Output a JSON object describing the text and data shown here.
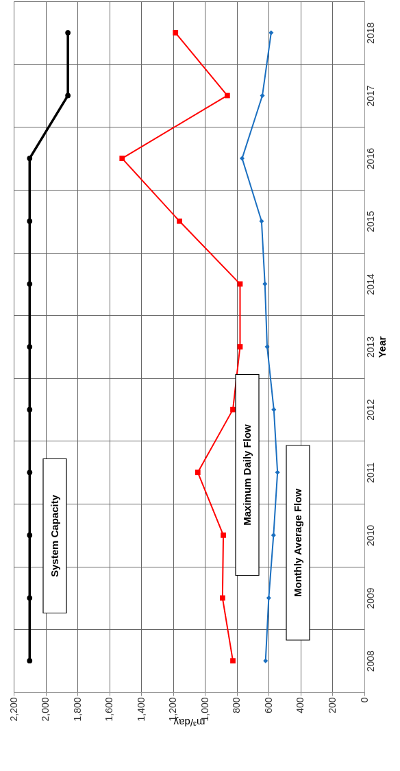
{
  "chart_data": {
    "type": "line",
    "orientation": "horizontal",
    "xlabel": "m³/day",
    "ylabel": "Year",
    "categories": [
      "2018",
      "2017",
      "2016",
      "2015",
      "2014",
      "2013",
      "2012",
      "2011",
      "2010",
      "2009",
      "2008"
    ],
    "xlim": [
      2200,
      0
    ],
    "xticks": [
      {
        "value": 2200,
        "label": "2,200"
      },
      {
        "value": 2000,
        "label": "2,000"
      },
      {
        "value": 1800,
        "label": "1,800"
      },
      {
        "value": 1600,
        "label": "1,600"
      },
      {
        "value": 1400,
        "label": "1,400"
      },
      {
        "value": 1200,
        "label": "1,200"
      },
      {
        "value": 1000,
        "label": "1,000"
      },
      800,
      600,
      400,
      200,
      0
    ],
    "grid": true,
    "series": [
      {
        "name": "System Capacity",
        "color": "#000000",
        "marker": "circle",
        "values": [
          1860,
          1860,
          2100,
          2100,
          2100,
          2100,
          2100,
          2100,
          2100,
          2100,
          2100
        ]
      },
      {
        "name": "Maximum Daily Flow",
        "color": "#ff0000",
        "marker": "square",
        "values": [
          1185,
          860,
          1520,
          1160,
          780,
          780,
          825,
          1045,
          885,
          890,
          825
        ]
      },
      {
        "name": "Monthly Average Flow",
        "color": "#1a6fc0",
        "marker": "diamond",
        "values": [
          585,
          640,
          767,
          645,
          624,
          610,
          568,
          545,
          570,
          600,
          620
        ]
      }
    ]
  }
}
